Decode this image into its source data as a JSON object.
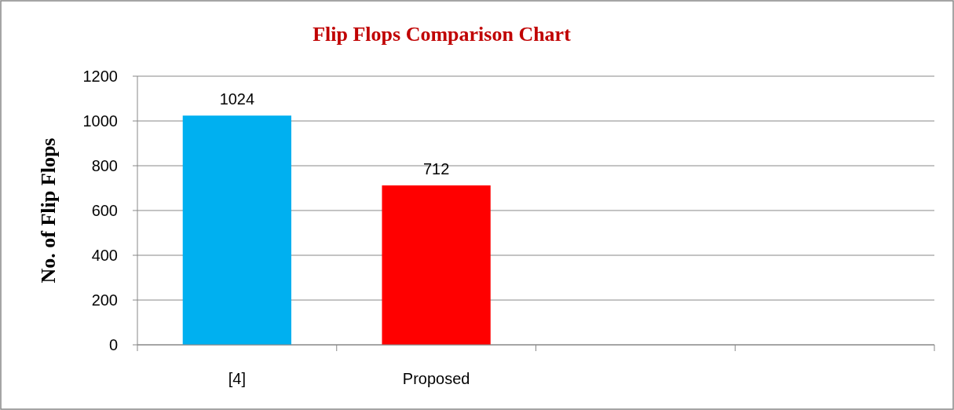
{
  "chart_data": {
    "type": "bar",
    "title": "Flip Flops Comparison Chart",
    "ylabel": "No. of Flip Flops",
    "categories": [
      "[4]",
      "Proposed",
      null,
      null
    ],
    "values": [
      1024,
      712,
      null,
      null
    ],
    "colors": [
      "#00b0f0",
      "#ff0000",
      null,
      null
    ],
    "ylim": [
      0,
      1200
    ],
    "yticks": [
      0,
      200,
      400,
      600,
      800,
      1000,
      1200
    ],
    "grid": "y",
    "data_labels": true
  }
}
